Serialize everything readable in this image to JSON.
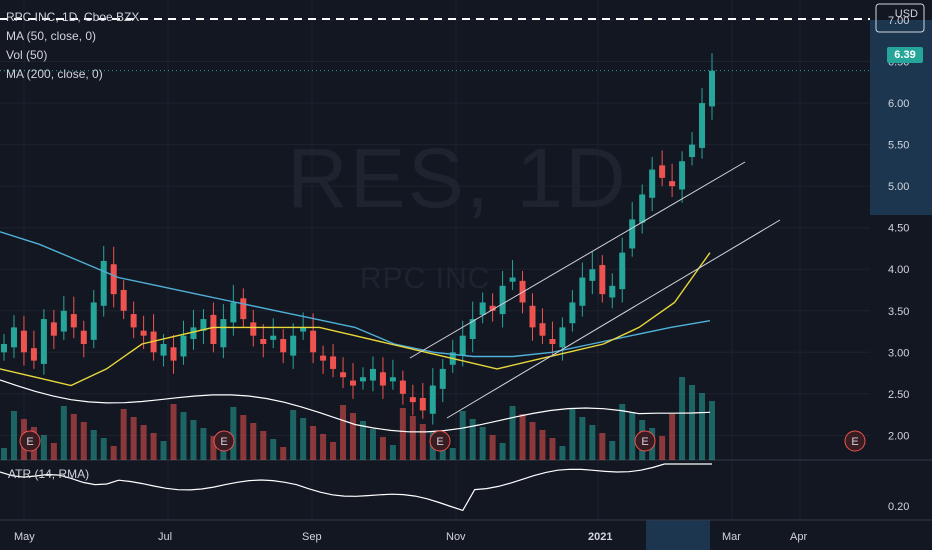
{
  "legend": {
    "symbol": "RPC INC, 1D, Cboe BZX",
    "ma50": "MA (50, close, 0)",
    "vol": "Vol (50)",
    "ma200": "MA (200, close, 0)"
  },
  "watermark": {
    "ticker": "RES, 1D",
    "name": "RPC INC"
  },
  "currency": "USD",
  "last_price": "6.39",
  "atr_label": "ATR (14, RMA)",
  "earnings_marker": "E",
  "colors": {
    "background": "#131722",
    "up": "#26a69a",
    "down": "#ef5350",
    "ma50": "#e8d83a",
    "ma200": "#4fb0d8",
    "volume_ma": "#ffffff",
    "trendline": "#d1d4dc",
    "atr": "#ffffff",
    "axis_highlight": "#1c3650"
  },
  "chart_data": {
    "type": "candlestick",
    "title": "RPC INC, 1D, Cboe BZX",
    "x_ticks": [
      "May",
      "Jul",
      "Sep",
      "Nov",
      "2021",
      "Mar",
      "Apr"
    ],
    "y_ticks": [
      "7.00",
      "6.50",
      "6.00",
      "5.50",
      "5.00",
      "4.50",
      "4.00",
      "3.50",
      "3.00",
      "2.50",
      "2.00"
    ],
    "atr_ticks": [
      "0.20"
    ],
    "ylim": [
      1.8,
      7.0
    ],
    "last_close": 6.39,
    "close_series": [
      [
        "May",
        3.1
      ],
      [
        "May",
        3.3
      ],
      [
        "May",
        3.0
      ],
      [
        "May",
        2.9
      ],
      [
        "May",
        3.4
      ],
      [
        "May",
        3.2
      ],
      [
        "May",
        3.5
      ],
      [
        "Jun",
        3.3
      ],
      [
        "Jun",
        3.1
      ],
      [
        "Jun",
        3.6
      ],
      [
        "Jun",
        4.1
      ],
      [
        "Jun",
        3.7
      ],
      [
        "Jun",
        3.5
      ],
      [
        "Jun",
        3.3
      ],
      [
        "Jul",
        3.2
      ],
      [
        "Jul",
        3.0
      ],
      [
        "Jul",
        3.1
      ],
      [
        "Jul",
        2.9
      ],
      [
        "Jul",
        3.2
      ],
      [
        "Jul",
        3.3
      ],
      [
        "Jul",
        3.4
      ],
      [
        "Aug",
        3.1
      ],
      [
        "Aug",
        3.4
      ],
      [
        "Aug",
        3.6
      ],
      [
        "Aug",
        3.4
      ],
      [
        "Aug",
        3.2
      ],
      [
        "Aug",
        3.1
      ],
      [
        "Aug",
        3.2
      ],
      [
        "Sep",
        3.0
      ],
      [
        "Sep",
        3.2
      ],
      [
        "Sep",
        3.3
      ],
      [
        "Sep",
        3.0
      ],
      [
        "Sep",
        2.9
      ],
      [
        "Sep",
        2.8
      ],
      [
        "Sep",
        2.7
      ],
      [
        "Oct",
        2.6
      ],
      [
        "Oct",
        2.7
      ],
      [
        "Oct",
        2.8
      ],
      [
        "Oct",
        2.6
      ],
      [
        "Oct",
        2.7
      ],
      [
        "Oct",
        2.5
      ],
      [
        "Oct",
        2.4
      ],
      [
        "Nov",
        2.3
      ],
      [
        "Nov",
        2.6
      ],
      [
        "Nov",
        2.8
      ],
      [
        "Nov",
        3.0
      ],
      [
        "Nov",
        3.2
      ],
      [
        "Nov",
        3.4
      ],
      [
        "Nov",
        3.6
      ],
      [
        "Dec",
        3.5
      ],
      [
        "Dec",
        3.8
      ],
      [
        "Dec",
        3.9
      ],
      [
        "Dec",
        3.6
      ],
      [
        "Dec",
        3.3
      ],
      [
        "Dec",
        3.2
      ],
      [
        "Dec",
        3.1
      ],
      [
        "2021",
        3.3
      ],
      [
        "2021",
        3.6
      ],
      [
        "2021",
        3.9
      ],
      [
        "2021",
        4.0
      ],
      [
        "2021",
        3.7
      ],
      [
        "2021",
        3.8
      ],
      [
        "2021",
        4.2
      ],
      [
        "Feb",
        4.6
      ],
      [
        "Feb",
        4.9
      ],
      [
        "Feb",
        5.2
      ],
      [
        "Feb",
        5.1
      ],
      [
        "Feb",
        5.0
      ],
      [
        "Feb",
        5.3
      ],
      [
        "Feb",
        5.5
      ],
      [
        "Feb",
        6.0
      ],
      [
        "Feb",
        6.39
      ]
    ],
    "ma50_series": [
      2.8,
      2.7,
      2.6,
      2.8,
      3.1,
      3.2,
      3.3,
      3.3,
      3.3,
      3.3,
      3.2,
      3.1,
      3.0,
      2.9,
      2.8,
      2.9,
      3.0,
      3.1,
      3.3,
      3.6,
      4.2
    ],
    "ma200_series": [
      4.45,
      4.3,
      4.1,
      3.9,
      3.8,
      3.7,
      3.6,
      3.5,
      3.4,
      3.3,
      3.1,
      3.0,
      2.95,
      2.95,
      3.0,
      3.1,
      3.2,
      3.3,
      3.38
    ]
  }
}
